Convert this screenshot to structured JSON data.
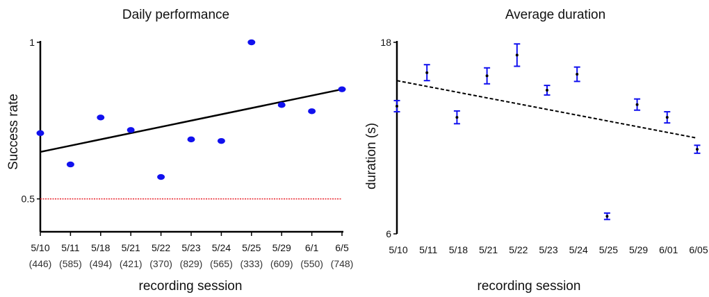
{
  "chart_data": [
    {
      "type": "scatter",
      "title": "Daily performance",
      "xlabel": "recording session",
      "ylabel": "Success rate",
      "categories": [
        "5/10",
        "5/11",
        "5/18",
        "5/21",
        "5/22",
        "5/23",
        "5/24",
        "5/25",
        "5/29",
        "6/1",
        "6/5"
      ],
      "counts": [
        "(446)",
        "(585)",
        "(494)",
        "(421)",
        "(370)",
        "(829)",
        "(565)",
        "(333)",
        "(609)",
        "(550)",
        "(748)"
      ],
      "values": [
        0.71,
        0.61,
        0.76,
        0.72,
        0.57,
        0.69,
        0.685,
        1.0,
        0.8,
        0.78,
        0.85
      ],
      "ylim": [
        0.395,
        1.0
      ],
      "yticks": [
        {
          "value": 0.5,
          "label": "0.5"
        },
        {
          "value": 1.0,
          "label": "1"
        }
      ],
      "trend": {
        "start": 0.65,
        "end": 0.85,
        "style": "solid"
      },
      "chance_line": {
        "value": 0.5,
        "color": "#e8202a"
      },
      "point_color": "#1111ee"
    },
    {
      "type": "scatter",
      "title": "Average duration",
      "xlabel": "recording session",
      "ylabel": "duration (s)",
      "categories": [
        "5/10",
        "5/11",
        "5/18",
        "5/21",
        "5/22",
        "5/23",
        "5/24",
        "5/25",
        "5/29",
        "6/01",
        "6/05"
      ],
      "values": [
        14.0,
        16.1,
        13.3,
        15.9,
        17.2,
        15.0,
        16.0,
        7.1,
        14.1,
        13.3,
        11.3
      ],
      "errors": [
        0.35,
        0.5,
        0.4,
        0.5,
        0.7,
        0.3,
        0.45,
        0.2,
        0.35,
        0.35,
        0.25
      ],
      "ylim": [
        6,
        18
      ],
      "yticks": [
        {
          "value": 18,
          "label": "18"
        },
        {
          "value": 6,
          "label": "6"
        }
      ],
      "trend": {
        "start": 15.6,
        "end": 12.0,
        "style": "dashed"
      },
      "error_color": "#1111ee",
      "point_color": "#000000"
    }
  ]
}
